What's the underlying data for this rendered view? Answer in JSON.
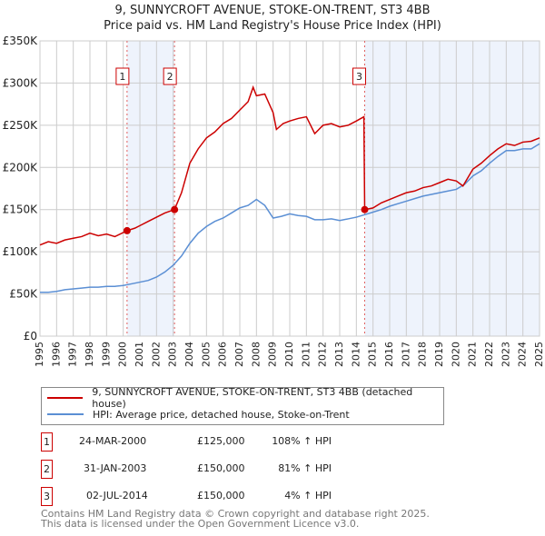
{
  "chart_data": {
    "type": "line",
    "title": "9, SUNNYCROFT AVENUE, STOKE-ON-TRENT, ST3 4BB",
    "subtitle": "Price paid vs. HM Land Registry's House Price Index (HPI)",
    "xlim": [
      1995,
      2025
    ],
    "ylim": [
      0,
      350000
    ],
    "y_ticks": [
      0,
      50000,
      100000,
      150000,
      200000,
      250000,
      300000,
      350000
    ],
    "y_tick_labels": [
      "£0",
      "£50K",
      "£100K",
      "£150K",
      "£200K",
      "£250K",
      "£300K",
      "£350K"
    ],
    "x_ticks": [
      1995,
      1996,
      1997,
      1998,
      1999,
      2000,
      2001,
      2002,
      2003,
      2004,
      2005,
      2006,
      2007,
      2008,
      2009,
      2010,
      2011,
      2012,
      2013,
      2014,
      2015,
      2016,
      2017,
      2018,
      2019,
      2020,
      2021,
      2022,
      2023,
      2024,
      2025
    ],
    "grid": true,
    "shaded_ranges": [
      [
        2000.23,
        2003.08
      ],
      [
        2014.5,
        2025
      ]
    ],
    "series": [
      {
        "name": "9, SUNNYCROFT AVENUE, STOKE-ON-TRENT, ST3 4BB (detached house)",
        "color": "#cc0000",
        "x": [
          1995,
          1995.5,
          1996,
          1996.5,
          1997,
          1997.5,
          1998,
          1998.5,
          1999,
          1999.5,
          2000.23,
          2000.7,
          2001,
          2001.5,
          2002,
          2002.5,
          2003.08,
          2003.5,
          2004,
          2004.5,
          2005,
          2005.5,
          2006,
          2006.5,
          2007,
          2007.5,
          2007.8,
          2008,
          2008.5,
          2009,
          2009.2,
          2009.6,
          2010,
          2010.5,
          2011,
          2011.5,
          2012,
          2012.5,
          2013,
          2013.5,
          2014,
          2014.45,
          2014.5,
          2015,
          2015.5,
          2016,
          2016.5,
          2017,
          2017.5,
          2018,
          2018.5,
          2019,
          2019.5,
          2020,
          2020.4,
          2021,
          2021.5,
          2022,
          2022.5,
          2023,
          2023.5,
          2024,
          2024.5,
          2025
        ],
        "y": [
          108000,
          112000,
          110000,
          114000,
          116000,
          118000,
          122000,
          119000,
          121000,
          118000,
          125000,
          128000,
          131000,
          136000,
          141000,
          146000,
          150000,
          170000,
          205000,
          222000,
          235000,
          242000,
          252000,
          258000,
          268000,
          278000,
          295000,
          285000,
          287000,
          265000,
          245000,
          252000,
          255000,
          258000,
          260000,
          240000,
          250000,
          252000,
          248000,
          250000,
          255000,
          260000,
          150000,
          152000,
          158000,
          162000,
          166000,
          170000,
          172000,
          176000,
          178000,
          182000,
          186000,
          184000,
          178000,
          198000,
          205000,
          214000,
          222000,
          228000,
          226000,
          230000,
          231000,
          235000
        ]
      },
      {
        "name": "HPI: Average price, detached house, Stoke-on-Trent",
        "color": "#5b8fd4",
        "x": [
          1995,
          1995.5,
          1996,
          1996.5,
          1997,
          1997.5,
          1998,
          1998.5,
          1999,
          1999.5,
          2000,
          2000.5,
          2001,
          2001.5,
          2002,
          2002.5,
          2003,
          2003.5,
          2004,
          2004.5,
          2005,
          2005.5,
          2006,
          2006.5,
          2007,
          2007.5,
          2008,
          2008.5,
          2009,
          2009.5,
          2010,
          2010.5,
          2011,
          2011.5,
          2012,
          2012.5,
          2013,
          2013.5,
          2014,
          2014.5,
          2015,
          2015.5,
          2016,
          2016.5,
          2017,
          2017.5,
          2018,
          2018.5,
          2019,
          2019.5,
          2020,
          2020.5,
          2021,
          2021.5,
          2022,
          2022.5,
          2023,
          2023.5,
          2024,
          2024.5,
          2025
        ],
        "y": [
          52000,
          52000,
          53000,
          55000,
          56000,
          57000,
          58000,
          58000,
          59000,
          59000,
          60000,
          62000,
          64000,
          66000,
          70000,
          76000,
          84000,
          95000,
          110000,
          122000,
          130000,
          136000,
          140000,
          146000,
          152000,
          155000,
          162000,
          155000,
          140000,
          142000,
          145000,
          143000,
          142000,
          138000,
          138000,
          139000,
          137000,
          139000,
          141000,
          144000,
          147000,
          150000,
          154000,
          157000,
          160000,
          163000,
          166000,
          168000,
          170000,
          172000,
          174000,
          180000,
          190000,
          196000,
          205000,
          213000,
          220000,
          220000,
          222000,
          222000,
          228000
        ]
      }
    ],
    "sales": [
      {
        "num": "1",
        "x": 2000.23,
        "y": 125000,
        "date": "24-MAR-2000",
        "price": "£125,000",
        "hpi": "108% ↑ HPI"
      },
      {
        "num": "2",
        "x": 2003.08,
        "y": 150000,
        "date": "31-JAN-2003",
        "price": "£150,000",
        "hpi": "81% ↑ HPI"
      },
      {
        "num": "3",
        "x": 2014.5,
        "y": 150000,
        "date": "02-JUL-2014",
        "price": "£150,000",
        "hpi": "4% ↑ HPI"
      }
    ]
  },
  "footer": {
    "line1": "Contains HM Land Registry data © Crown copyright and database right 2025.",
    "line2": "This data is licensed under the Open Government Licence v3.0."
  }
}
